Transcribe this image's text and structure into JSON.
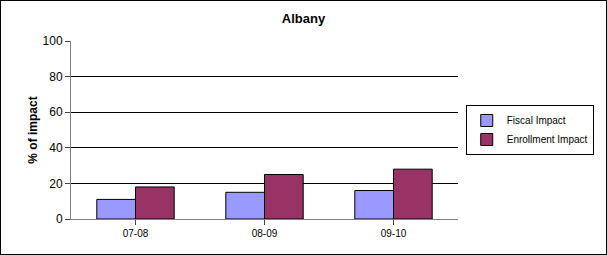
{
  "chart_data": {
    "type": "bar",
    "title": "Albany",
    "y_label": "% of impact",
    "categories": [
      "07-08",
      "08-09",
      "09-10"
    ],
    "series": [
      {
        "name": "Fiscal Impact",
        "color": "#9999ff",
        "values": [
          11,
          15,
          16
        ]
      },
      {
        "name": "Enrollment Impact",
        "color": "#993366",
        "values": [
          18,
          25,
          28
        ]
      }
    ],
    "ylim": [
      0,
      100
    ],
    "yticks": [
      0,
      20,
      40,
      60,
      80,
      100
    ],
    "grid": true,
    "legend": "right"
  }
}
